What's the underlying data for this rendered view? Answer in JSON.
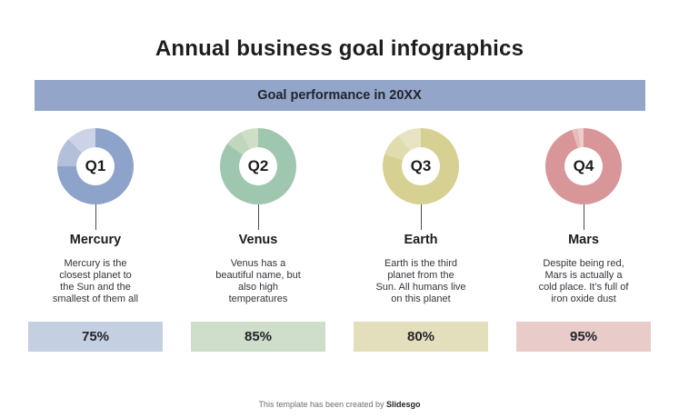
{
  "page": {
    "title": "Annual business goal infographics",
    "subtitle": "Goal performance in 20XX",
    "footer": {
      "prefix": "This template has been created by ",
      "brand": "Slidesgo"
    }
  },
  "colors": {
    "background": "#ffffff",
    "subtitle_bar": "#93a5c8",
    "title_text": "#1d1d1f",
    "connector_line": "#4d4d4d"
  },
  "quarters": [
    {
      "label": "Q1",
      "planet": "Mercury",
      "description": "Mercury is the\ncloses t planet to\nthe Sun and the\nsmallest of them all",
      "percent": 75,
      "percent_label": "75%",
      "color": "#8ea3c9",
      "color_mid": "#b4c0da",
      "color_light": "#ccd3e6",
      "bar_color": "#c4cfe1"
    },
    {
      "label": "Q2",
      "planet": "Venus",
      "description": "Venus has a\nbeautiful name, but\nalso high\ntemperatures",
      "percent": 85,
      "percent_label": "85%",
      "color": "#9fc6ae",
      "color_mid": "#c0d6bd",
      "color_light": "#cedec7",
      "bar_color": "#cfdeca"
    },
    {
      "label": "Q3",
      "planet": "Earth",
      "description": "Earth is the third\nplanet from the\nSun. All humans live\non this planet",
      "percent": 80,
      "percent_label": "80%",
      "color": "#d6d192",
      "color_mid": "#e0dcae",
      "color_light": "#e8e3c2",
      "bar_color": "#e3dfbc"
    },
    {
      "label": "Q4",
      "planet": "Mars",
      "description": "Despite being red,\nMars is actually a\ncold place. It’s full of\niron oxide dust",
      "percent": 95,
      "percent_label": "95%",
      "color": "#d89699",
      "color_mid": "#e6bcba",
      "color_light": "#eeccca",
      "bar_color": "#e9cbca"
    }
  ],
  "chart_data": {
    "type": "pie",
    "variant": "donut",
    "title": "Annual business goal infographics",
    "subtitle": "Goal performance in 20XX",
    "categories": [
      "Q1",
      "Q2",
      "Q3",
      "Q4"
    ],
    "labels": [
      "Mercury",
      "Venus",
      "Earth",
      "Mars"
    ],
    "series": [
      {
        "name": "Goal performance",
        "values": [
          75,
          85,
          80,
          95
        ]
      }
    ],
    "value_format": "percent",
    "legend": "none",
    "notes": "Each quarter is a separate donut: filled share = value %, remainder shown in lighter tints starting clockwise from 12 o'clock."
  }
}
